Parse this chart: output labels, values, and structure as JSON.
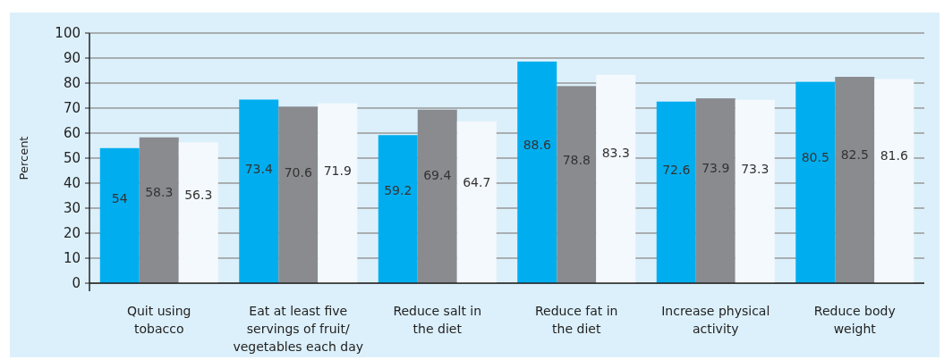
{
  "chart_data": {
    "type": "bar",
    "ylabel": "Percent",
    "categories": [
      "Quit using\ntobacco",
      "Eat at least five\nservings of fruit/\nvegetables each day",
      "Reduce salt in\nthe diet",
      "Reduce fat in\nthe diet",
      "Increase physical\nactivity",
      "Reduce body\nweight"
    ],
    "series": [
      {
        "color": "#00aeef",
        "values": [
          54,
          73.4,
          59.2,
          88.6,
          72.6,
          80.5
        ]
      },
      {
        "color": "#8a8b8f",
        "values": [
          58.3,
          70.6,
          69.4,
          78.8,
          73.9,
          82.5
        ]
      },
      {
        "color": "#f4f9fd",
        "values": [
          56.3,
          71.9,
          64.7,
          83.3,
          73.3,
          81.6
        ]
      }
    ],
    "ylim": [
      0,
      100
    ],
    "yticks": [
      0,
      10,
      20,
      30,
      40,
      50,
      60,
      70,
      80,
      90,
      100
    ],
    "grid": "y",
    "data_labels": true
  }
}
